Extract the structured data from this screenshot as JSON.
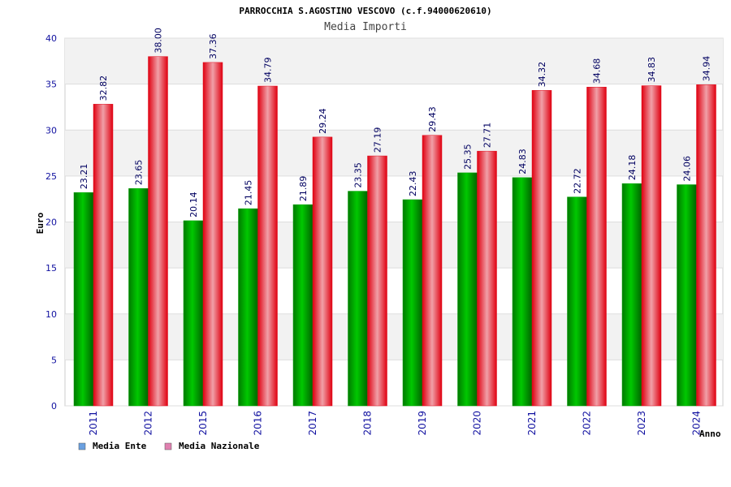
{
  "chart_data": {
    "type": "bar",
    "title": "PARROCCHIA S.AGOSTINO VESCOVO (c.f.94000620610)",
    "subtitle": "Media Importi",
    "ylabel": "Euro",
    "xlabel": "Anno",
    "ylim": [
      0,
      40
    ],
    "yticks": [
      "0",
      "5",
      "10",
      "15",
      "20",
      "25",
      "30",
      "35",
      "40"
    ],
    "grid": true,
    "legend_position": "bottom-left",
    "categories": [
      "2011",
      "2012",
      "2015",
      "2016",
      "2017",
      "2018",
      "2019",
      "2020",
      "2021",
      "2022",
      "2023",
      "2024"
    ],
    "series": [
      {
        "name": "Media Ente",
        "color": "#00a000",
        "legend_color": "#6aa0e0",
        "values": [
          23.21,
          23.65,
          20.14,
          21.45,
          21.89,
          23.35,
          22.43,
          25.35,
          24.83,
          22.72,
          24.18,
          24.06
        ],
        "labels": [
          "23.21",
          "23.65",
          "20.14",
          "21.45",
          "21.89",
          "23.35",
          "22.43",
          "25.35",
          "24.83",
          "22.72",
          "24.18",
          "24.06"
        ]
      },
      {
        "name": "Media Nazionale",
        "color": "#e01020",
        "legend_color": "#e080b0",
        "values": [
          32.82,
          38.0,
          37.36,
          34.79,
          29.24,
          27.19,
          29.43,
          27.71,
          34.32,
          34.68,
          34.83,
          34.94
        ],
        "labels": [
          "32.82",
          "38.00",
          "37.36",
          "34.79",
          "29.24",
          "27.19",
          "29.43",
          "27.71",
          "34.32",
          "34.68",
          "34.83",
          "34.94"
        ]
      }
    ]
  }
}
